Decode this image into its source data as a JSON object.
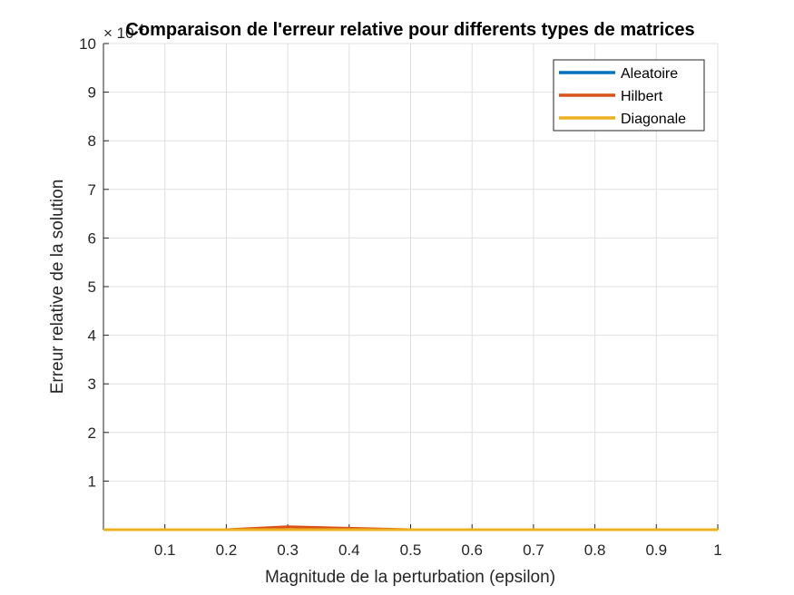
{
  "chart_data": {
    "type": "line",
    "title": "Comparaison de l'erreur relative pour differents types de matrices",
    "xlabel": "Magnitude de la perturbation (epsilon)",
    "ylabel": "Erreur relative de la solution",
    "y_exponent_base": "× 10",
    "y_exponent_power": "4",
    "xlim": [
      0,
      1
    ],
    "ylim": [
      0,
      10
    ],
    "x_ticks": [
      0.1,
      0.2,
      0.3,
      0.4,
      0.5,
      0.6,
      0.7,
      0.8,
      0.9,
      1
    ],
    "x_tick_labels": [
      "0.1",
      "0.2",
      "0.3",
      "0.4",
      "0.5",
      "0.6",
      "0.7",
      "0.8",
      "0.9",
      "1"
    ],
    "y_ticks": [
      1,
      2,
      3,
      4,
      5,
      6,
      7,
      8,
      9,
      10
    ],
    "y_tick_labels": [
      "1",
      "2",
      "3",
      "4",
      "5",
      "6",
      "7",
      "8",
      "9",
      "10"
    ],
    "grid": true,
    "legend_position": "top-right",
    "x": [
      0,
      0.1,
      0.2,
      0.3,
      0.4,
      0.5,
      0.6,
      0.7,
      0.8,
      0.9,
      1
    ],
    "series": [
      {
        "name": "Aleatoire",
        "color": "#0072BD",
        "values": [
          0,
          0,
          0,
          0,
          0,
          0,
          0,
          0,
          0,
          0,
          0
        ]
      },
      {
        "name": "Hilbert",
        "color": "#D95319",
        "values": [
          0,
          0,
          0,
          0.06,
          0.03,
          0,
          0,
          0,
          0,
          0,
          0
        ]
      },
      {
        "name": "Diagonale",
        "color": "#EDB120",
        "values": [
          0,
          0,
          0,
          0,
          0,
          0,
          0,
          0,
          0,
          0,
          0
        ]
      }
    ]
  }
}
